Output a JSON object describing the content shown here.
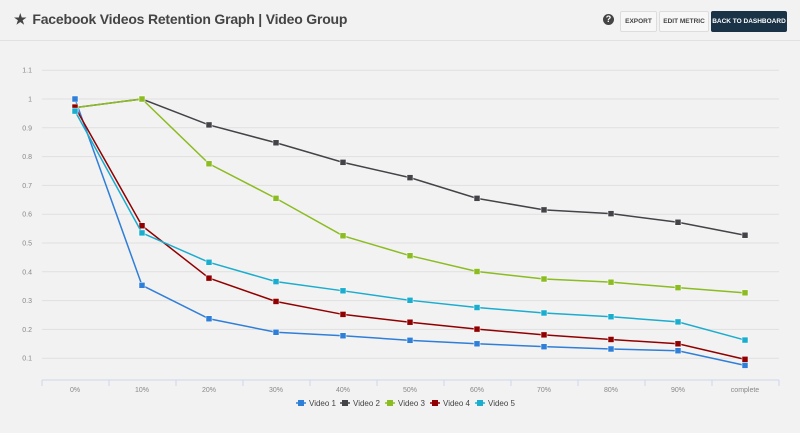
{
  "header": {
    "title": "Facebook Videos Retention Graph | Video Group",
    "star_icon": "star-icon",
    "help_icon": "question-circle-icon",
    "export_label": "EXPORT",
    "edit_label": "EDIT METRIC",
    "back_label": "BACK TO DASHBOARD"
  },
  "chart_data": {
    "type": "line",
    "title": "",
    "xlabel": "",
    "ylabel": "",
    "categories": [
      "0%",
      "10%",
      "20%",
      "30%",
      "40%",
      "50%",
      "60%",
      "70%",
      "80%",
      "90%",
      "complete"
    ],
    "y_ticks": [
      "0.1",
      "0.2",
      "0.3",
      "0.4",
      "0.5",
      "0.6",
      "0.7",
      "0.8",
      "0.9",
      "1",
      "1.1"
    ],
    "ylim": [
      0,
      1.1
    ],
    "grid": true,
    "legend": "bottom",
    "series": [
      {
        "name": "Video 1",
        "color": "#2f7ed8",
        "values": [
          1.0,
          0.353,
          0.237,
          0.19,
          0.178,
          0.162,
          0.15,
          0.14,
          0.132,
          0.126,
          0.075
        ]
      },
      {
        "name": "Video 2",
        "color": "#434348",
        "values": [
          0.97,
          1.0,
          0.91,
          0.848,
          0.78,
          0.727,
          0.655,
          0.615,
          0.602,
          0.572,
          0.527
        ]
      },
      {
        "name": "Video 3",
        "color": "#8bbc21",
        "values": [
          0.97,
          1.0,
          0.775,
          0.655,
          0.525,
          0.456,
          0.401,
          0.375,
          0.364,
          0.345,
          0.327
        ]
      },
      {
        "name": "Video 4",
        "color": "#910000",
        "values": [
          0.972,
          0.56,
          0.378,
          0.297,
          0.252,
          0.225,
          0.201,
          0.181,
          0.165,
          0.15,
          0.096
        ]
      },
      {
        "name": "Video 5",
        "color": "#1aadce",
        "values": [
          0.958,
          0.535,
          0.433,
          0.366,
          0.334,
          0.301,
          0.276,
          0.257,
          0.244,
          0.226,
          0.163
        ]
      }
    ]
  }
}
